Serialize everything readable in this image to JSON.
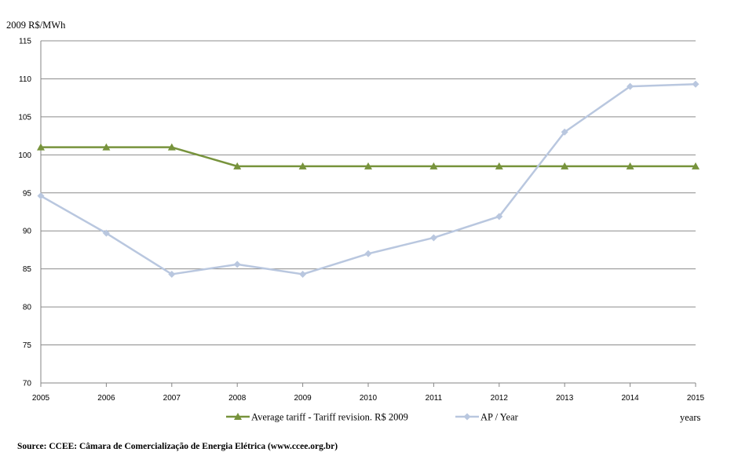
{
  "chart_data": {
    "type": "line",
    "ylabel": "2009 R$/MWh",
    "xlabel": "years",
    "x": [
      "2005",
      "2006",
      "2007",
      "2008",
      "2009",
      "2010",
      "2011",
      "2012",
      "2013",
      "2014",
      "2015"
    ],
    "ylim": [
      70,
      115
    ],
    "yticks": [
      70,
      75,
      80,
      85,
      90,
      95,
      100,
      105,
      110,
      115
    ],
    "grid": "horizontal",
    "legend_position": "bottom",
    "series": [
      {
        "name": "Average tariff - Tariff revision. R$ 2009",
        "color": "#77933c",
        "marker": "triangle",
        "values": [
          101,
          101,
          101,
          98.5,
          98.5,
          98.5,
          98.5,
          98.5,
          98.5,
          98.5,
          98.5
        ]
      },
      {
        "name": "AP / Year",
        "color": "#b9c7df",
        "marker": "diamond",
        "values": [
          94.6,
          89.7,
          84.3,
          85.6,
          84.3,
          87.0,
          89.1,
          91.9,
          103.0,
          109.0,
          109.3
        ]
      }
    ]
  },
  "source": "Source: CCEE: Câmara de Comercialização de Energia Elétrica (www.ccee.org.br)"
}
